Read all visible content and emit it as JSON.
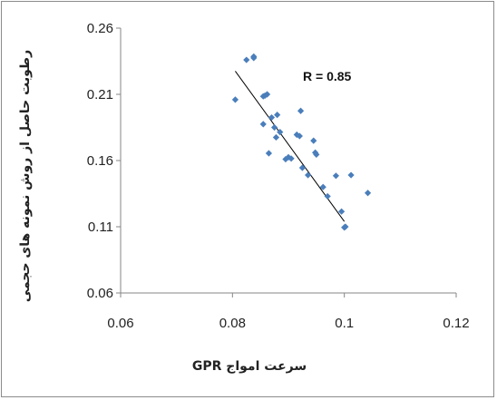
{
  "chart_data": {
    "type": "scatter",
    "xlabel": "سرعت امواج GPR",
    "ylabel": "رطوبت حاصل از روش نمونه های حجمی",
    "xlim": [
      0.06,
      0.12
    ],
    "ylim": [
      0.06,
      0.26
    ],
    "x_ticks": [
      "0.06",
      "0.08",
      "0.1",
      "0.12"
    ],
    "y_ticks": [
      "0.06",
      "0.11",
      "0.16",
      "0.21",
      "0.26"
    ],
    "annotation": "R = 0.85",
    "grid": false,
    "legend": "none",
    "marker_color": "#4a7ebb",
    "trendline_color": "#000000",
    "trendline": {
      "x": [
        0.0805,
        0.1
      ],
      "y": [
        0.2275,
        0.114
      ]
    },
    "x": [
      0.0805,
      0.0825,
      0.0838,
      0.0838,
      0.0855,
      0.0858,
      0.0862,
      0.0855,
      0.0865,
      0.087,
      0.0875,
      0.0878,
      0.088,
      0.0885,
      0.0895,
      0.09,
      0.0905,
      0.0915,
      0.092,
      0.0922,
      0.0925,
      0.0935,
      0.0945,
      0.0948,
      0.095,
      0.0962,
      0.097,
      0.0985,
      0.0995,
      0.1,
      0.1002,
      0.1012,
      0.1042
    ],
    "y": [
      0.206,
      0.236,
      0.2385,
      0.2375,
      0.2085,
      0.209,
      0.21,
      0.1875,
      0.1655,
      0.1925,
      0.185,
      0.1775,
      0.1945,
      0.1815,
      0.161,
      0.1625,
      0.1615,
      0.1795,
      0.1785,
      0.1975,
      0.1545,
      0.149,
      0.175,
      0.166,
      0.1645,
      0.14,
      0.133,
      0.1485,
      0.1215,
      0.1095,
      0.11,
      0.149,
      0.1355
    ]
  }
}
